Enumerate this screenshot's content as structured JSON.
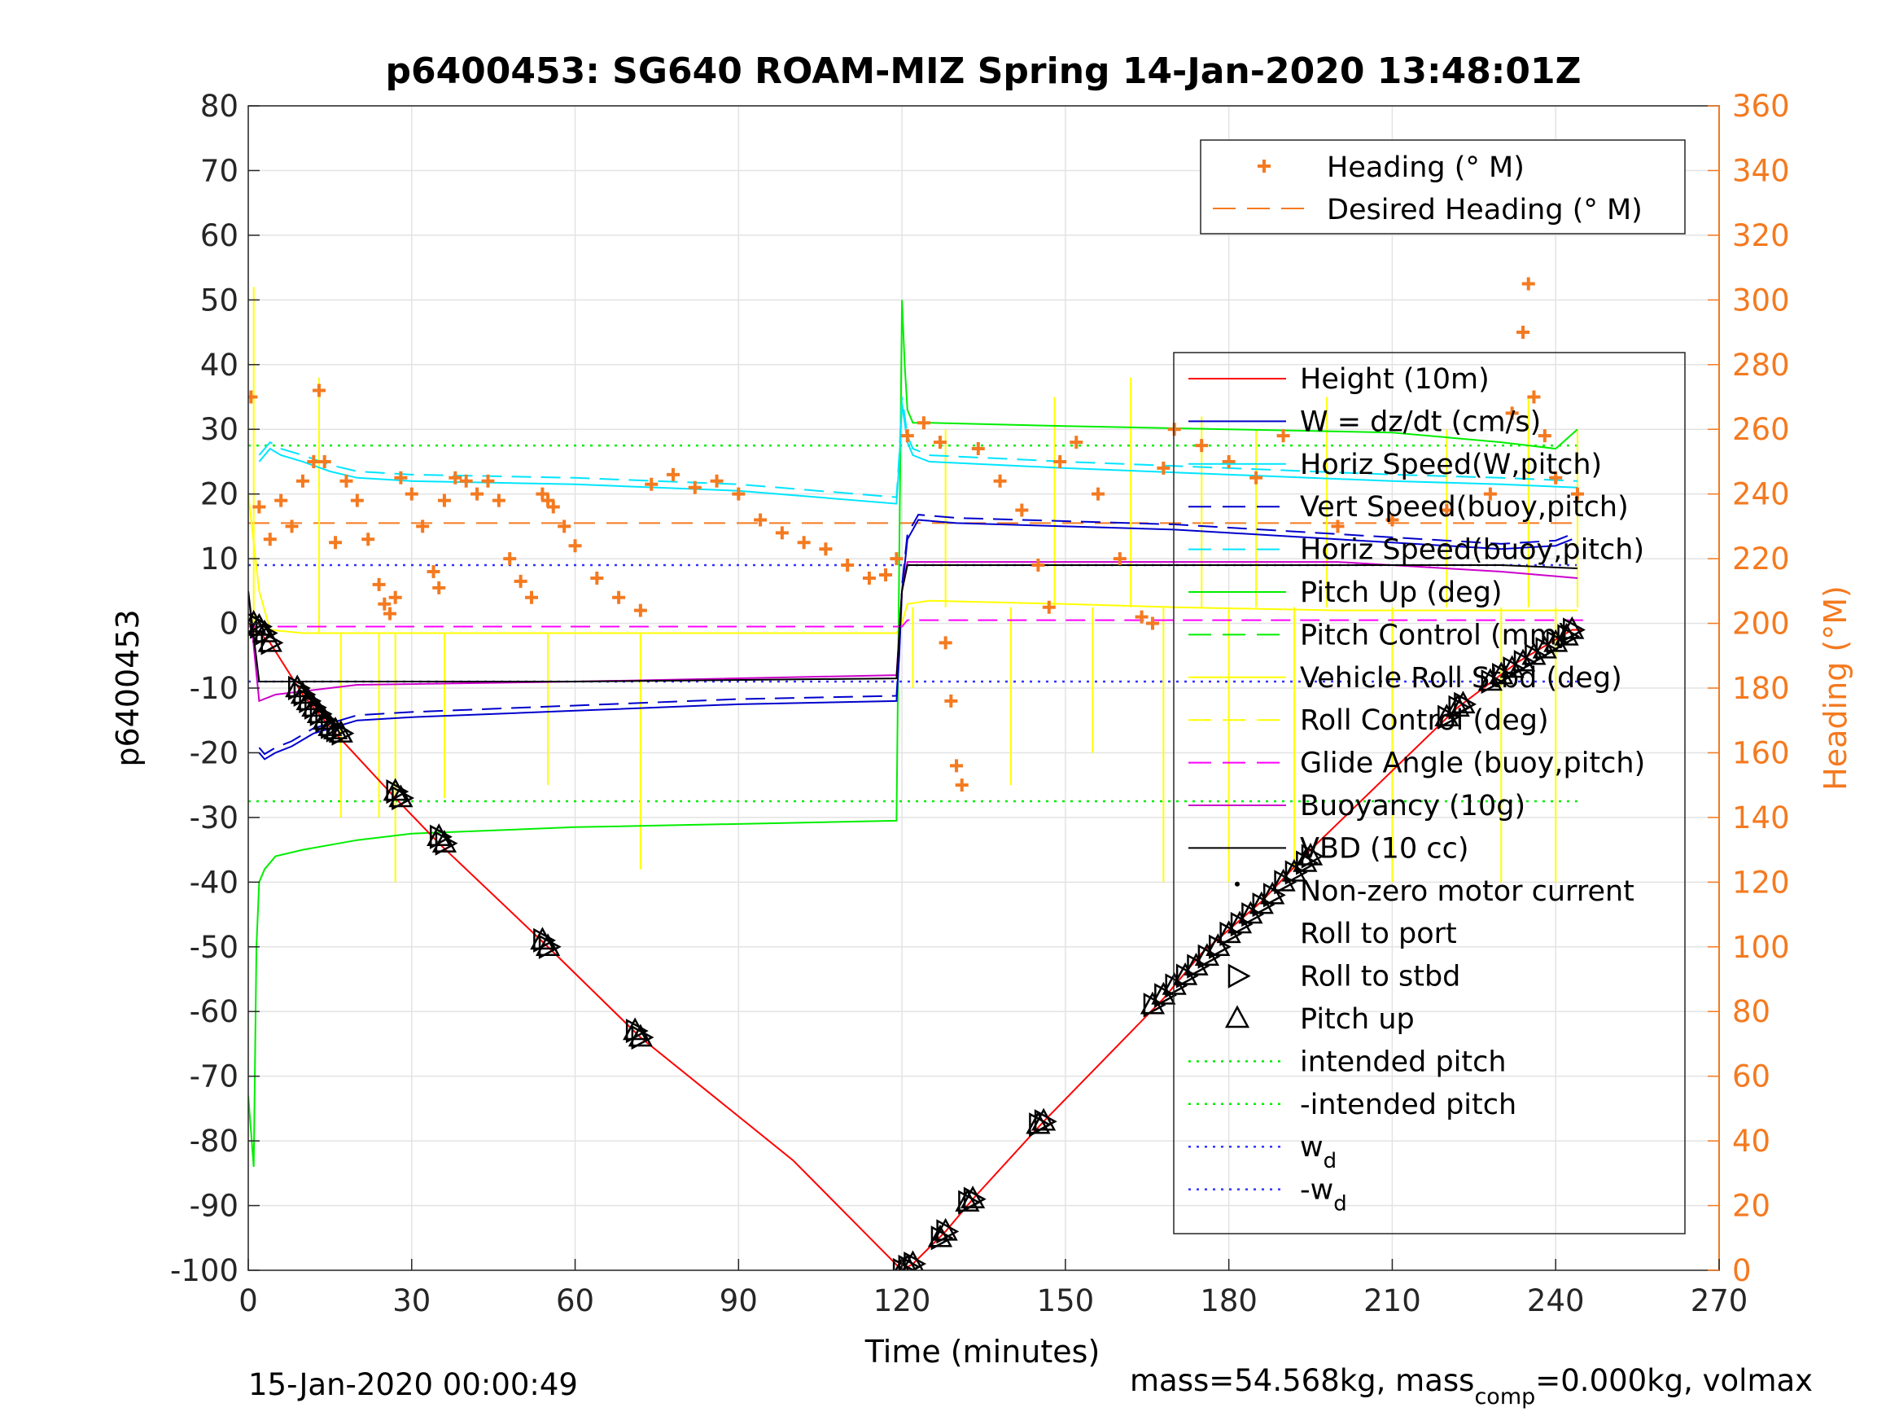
{
  "chart_data": {
    "type": "line",
    "title": "p6400453: SG640 ROAM-MIZ Spring 14-Jan-2020 13:48:01Z",
    "xlabel": "Time (minutes)",
    "ylabel_left": "p6400453",
    "ylabel_right": "Heading (°M)",
    "xlim": [
      0,
      270
    ],
    "ylim_left": [
      -100,
      80
    ],
    "ylim_right": [
      0,
      360
    ],
    "x_ticks": [
      0,
      30,
      60,
      90,
      120,
      150,
      180,
      210,
      240,
      270
    ],
    "y_ticks_left": [
      80,
      70,
      60,
      50,
      40,
      30,
      20,
      10,
      0,
      -10,
      -20,
      -30,
      -40,
      -50,
      -60,
      -70,
      -80,
      -90,
      -100
    ],
    "y_ticks_right": [
      360,
      340,
      320,
      300,
      280,
      260,
      240,
      220,
      200,
      180,
      160,
      140,
      120,
      100,
      80,
      60,
      40,
      20,
      0
    ],
    "grid": true,
    "colors": {
      "height": "#ff0000",
      "w": "#0000cc",
      "horiz_speed": "#00e5ff",
      "pitch": "#00ee00",
      "roll": "#ffff00",
      "glide": "#ff00ff",
      "buoyancy": "#cc00cc",
      "vbd": "#000000",
      "heading": "#f47a20",
      "wd": "#3333ff"
    },
    "legend_heading": [
      {
        "label": "Heading (° M)",
        "style": "plus",
        "color": "#f47a20"
      },
      {
        "label": "Desired Heading (° M)",
        "style": "dash",
        "color": "#f47a20"
      }
    ],
    "legend_main": [
      {
        "label": "Height (10m)",
        "style": "solid",
        "color": "#ff0000"
      },
      {
        "label": "W = dz/dt (cm/s)",
        "style": "solid",
        "color": "#0000cc"
      },
      {
        "label": "Horiz Speed(W,pitch)",
        "style": "solid",
        "color": "#00e5ff"
      },
      {
        "label": "Vert Speed(buoy,pitch)",
        "style": "dash",
        "color": "#0000cc"
      },
      {
        "label": "Horiz Speed(buoy,pitch)",
        "style": "dash",
        "color": "#00e5ff"
      },
      {
        "label": "Pitch Up (deg)",
        "style": "solid",
        "color": "#00ee00"
      },
      {
        "label": "Pitch Control (mm)",
        "style": "dash",
        "color": "#00ee00"
      },
      {
        "label": "Vehicle Roll Stbd (deg)",
        "style": "solid",
        "color": "#ffff00"
      },
      {
        "label": "Roll Control (deg)",
        "style": "dash",
        "color": "#ffff00"
      },
      {
        "label": "Glide Angle (buoy,pitch)",
        "style": "dash",
        "color": "#ff00ff"
      },
      {
        "label": "Buoyancy (10g)",
        "style": "solid",
        "color": "#cc00cc"
      },
      {
        "label": "VBD (10 cc)",
        "style": "solid",
        "color": "#000000"
      },
      {
        "label": "Non-zero motor current",
        "style": "dot",
        "color": "#000000"
      },
      {
        "label": "Roll to port",
        "style": "tri-left",
        "color": "#000000"
      },
      {
        "label": "Roll to stbd",
        "style": "tri-right",
        "color": "#000000"
      },
      {
        "label": "Pitch up",
        "style": "tri-up",
        "color": "#000000"
      },
      {
        "label": "intended pitch",
        "style": "dotted",
        "color": "#00ee00"
      },
      {
        "label": "-intended pitch",
        "style": "dotted",
        "color": "#00ee00"
      },
      {
        "label": "w",
        "sub": "d",
        "style": "dotted",
        "color": "#3333ff"
      },
      {
        "label": "-w",
        "sub": "d",
        "style": "dotted",
        "color": "#3333ff"
      }
    ],
    "series_height": {
      "x": [
        0,
        4,
        10,
        16,
        27,
        35,
        55,
        72,
        100,
        120,
        122,
        128,
        133,
        146,
        168,
        175,
        186,
        195,
        222,
        233,
        243,
        245
      ],
      "y": [
        0,
        -3,
        -11,
        -17,
        -27,
        -34,
        -50,
        -64,
        -83,
        -100,
        -99,
        -94,
        -89,
        -77,
        -58,
        -51,
        -43,
        -35,
        -13,
        -6,
        -1,
        -1
      ]
    },
    "series_w": {
      "x": [
        2,
        3,
        5,
        8,
        12,
        16,
        20,
        30,
        60,
        90,
        119,
        119.5,
        120,
        121,
        123,
        130,
        150,
        170,
        190,
        210,
        230,
        240,
        243
      ],
      "y": [
        -20,
        -21,
        -20,
        -19,
        -17,
        -16,
        -15,
        -14.5,
        -13.5,
        -12.5,
        -12,
        -5,
        5,
        13,
        16,
        15.5,
        15,
        14.5,
        13.5,
        12.5,
        11.5,
        12,
        13
      ]
    },
    "series_horiz_speed": {
      "x": [
        2,
        4,
        6,
        10,
        15,
        20,
        30,
        60,
        90,
        119,
        119.5,
        120,
        121,
        122,
        125,
        150,
        180,
        210,
        230,
        244
      ],
      "y": [
        25,
        27,
        26,
        25,
        23.5,
        22.5,
        22,
        21.5,
        20.5,
        18.5,
        25,
        34,
        28,
        26,
        25,
        24,
        23,
        22,
        21.5,
        21
      ]
    },
    "series_pitch": {
      "x": [
        0,
        1,
        1.5,
        2,
        3,
        5,
        10,
        20,
        30,
        60,
        90,
        119,
        119.5,
        120,
        120.5,
        121,
        122,
        125,
        150,
        180,
        210,
        230,
        240,
        244
      ],
      "y": [
        -73,
        -84,
        -50,
        -40,
        -38,
        -36,
        -35,
        -33.5,
        -32.5,
        -31.5,
        -31,
        -30.5,
        10,
        50,
        40,
        33,
        31,
        31,
        30.5,
        30,
        29.5,
        28,
        27,
        30
      ]
    },
    "series_roll": {
      "x": [
        0,
        2,
        4,
        10,
        30,
        60,
        90,
        119,
        120,
        121,
        125,
        150,
        170,
        200,
        230,
        244
      ],
      "y": [
        20,
        5,
        -1,
        -1.5,
        -1.5,
        -1.5,
        -1.5,
        -1.5,
        0,
        3,
        3.5,
        3,
        2.5,
        2,
        2,
        2
      ]
    },
    "series_vbd": {
      "x": [
        0,
        2,
        5,
        20,
        60,
        119,
        120,
        121,
        150,
        200,
        230,
        244
      ],
      "y": [
        5,
        -9,
        -9,
        -9,
        -9,
        -8.5,
        5,
        9,
        9,
        9,
        9,
        8.5
      ]
    },
    "series_buoyancy": {
      "x": [
        0,
        2,
        5,
        20,
        60,
        119,
        120,
        121,
        150,
        200,
        230,
        244
      ],
      "y": [
        5,
        -12,
        -11,
        -9.5,
        -9,
        -8,
        5,
        9.5,
        9.5,
        9.5,
        8,
        7
      ]
    },
    "series_glide": {
      "x": [
        0,
        120,
        121,
        245
      ],
      "y": [
        -0.5,
        -0.5,
        0.5,
        0.5
      ]
    },
    "series_heading": {
      "x": [
        0.5,
        2,
        4,
        6,
        8,
        10,
        12,
        13,
        14,
        16,
        18,
        20,
        22,
        24,
        25,
        26,
        27,
        28,
        30,
        32,
        34,
        35,
        36,
        38,
        40,
        42,
        44,
        46,
        48,
        50,
        52,
        54,
        55,
        56,
        58,
        60,
        64,
        68,
        72,
        74,
        78,
        82,
        86,
        90,
        94,
        98,
        102,
        106,
        110,
        114,
        117,
        119,
        121,
        124,
        127,
        128,
        129,
        130,
        131,
        134,
        138,
        142,
        145,
        147,
        149,
        152,
        156,
        160,
        164,
        166,
        168,
        170,
        175,
        180,
        185,
        190,
        200,
        210,
        220,
        228,
        232,
        234,
        235,
        236,
        238,
        240,
        244
      ],
      "y": [
        270,
        236,
        226,
        238,
        230,
        244,
        250,
        272,
        250,
        225,
        244,
        238,
        226,
        212,
        206,
        203,
        208,
        245,
        240,
        230,
        216,
        211,
        238,
        245,
        244,
        240,
        244,
        238,
        220,
        213,
        208,
        240,
        238,
        236,
        230,
        224,
        214,
        208,
        204,
        243,
        246,
        242,
        244,
        240,
        232,
        228,
        225,
        223,
        218,
        214,
        215,
        220,
        258,
        262,
        256,
        194,
        176,
        156,
        150,
        254,
        244,
        235,
        218,
        205,
        250,
        256,
        240,
        220,
        202,
        200,
        248,
        260,
        255,
        250,
        245,
        258,
        230,
        232,
        235,
        240,
        265,
        290,
        305,
        270,
        258,
        245,
        240
      ]
    },
    "desired_heading": 231,
    "intended_pitch": 27.5,
    "wd": 9,
    "markers_x": [
      1,
      2,
      3,
      4,
      9,
      10,
      11,
      12,
      13,
      14,
      15,
      16,
      17,
      27,
      28,
      35,
      36,
      54,
      55,
      71,
      72,
      120,
      121,
      122,
      127,
      128,
      132,
      133,
      145,
      146,
      166,
      168,
      170,
      172,
      174,
      176,
      178,
      180,
      182,
      184,
      186,
      188,
      190,
      192,
      194,
      195,
      220,
      222,
      223,
      228,
      230,
      232,
      234,
      236,
      238,
      240,
      242,
      243
    ],
    "markers_y": [
      0,
      -0.5,
      -1.5,
      -3,
      -10,
      -11,
      -12,
      -13,
      -14,
      -15,
      -16,
      -16.5,
      -17,
      -26,
      -27,
      -33,
      -34,
      -49,
      -50,
      -63,
      -64,
      -100,
      -99.5,
      -99,
      -95,
      -94,
      -89.5,
      -89,
      -77.5,
      -77,
      -59,
      -57.5,
      -56,
      -54.5,
      -53,
      -51.5,
      -50,
      -48,
      -46.5,
      -45,
      -43.5,
      -42,
      -40,
      -38.5,
      -37,
      -36,
      -14.5,
      -13,
      -12.5,
      -9,
      -8,
      -7,
      -6,
      -5,
      -4,
      -3,
      -2,
      -1
    ],
    "annotations": {
      "date": "15-Jan-2020 00:00:49",
      "mass_text": "mass=54.568kg, mass",
      "mass_sub": "comp",
      "mass_tail": "=0.000kg, volmax"
    }
  }
}
